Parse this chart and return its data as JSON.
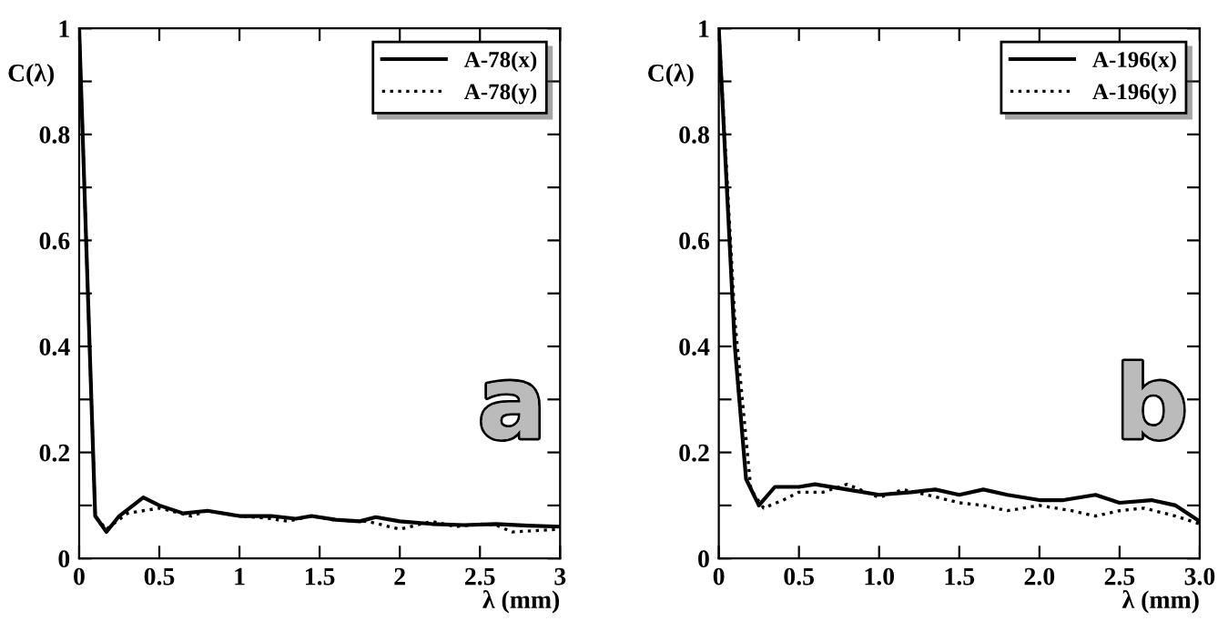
{
  "chart_data": [
    {
      "type": "line",
      "xlabel": "λ (mm)",
      "ylabel": "C(λ)",
      "annotations": [
        "a"
      ],
      "xlim": [
        0,
        3
      ],
      "ylim": [
        0,
        1
      ],
      "xticks": [
        0,
        0.5,
        1,
        1.5,
        2,
        2.5,
        3
      ],
      "yticks": [
        0,
        {
          "value": 0.1,
          "label": null
        },
        0.2,
        {
          "value": 0.3,
          "label": null
        },
        0.4,
        {
          "value": 0.5,
          "label": null
        },
        0.6,
        {
          "value": 0.7,
          "label": null
        },
        0.8,
        {
          "value": 0.9,
          "label": null
        },
        1
      ],
      "legend": "top right",
      "grid": false,
      "marker": "none",
      "series": [
        {
          "name": "A-78(x)",
          "color": "#000000",
          "line_style": "solid",
          "x": [
            0,
            0.1,
            0.17,
            0.25,
            0.4,
            0.5,
            0.65,
            0.8,
            1.0,
            1.2,
            1.35,
            1.45,
            1.6,
            1.75,
            1.85,
            2.0,
            2.2,
            2.4,
            2.6,
            2.8,
            3.0
          ],
          "values": [
            1,
            0.08,
            0.05,
            0.08,
            0.115,
            0.1,
            0.085,
            0.09,
            0.08,
            0.08,
            0.075,
            0.08,
            0.073,
            0.07,
            0.078,
            0.07,
            0.065,
            0.063,
            0.065,
            0.062,
            0.06
          ]
        },
        {
          "name": "A-78(y)",
          "color": "#000000",
          "line_style": "dotted",
          "x": [
            0,
            0.1,
            0.17,
            0.3,
            0.5,
            0.7,
            0.8,
            1.0,
            1.2,
            1.3,
            1.45,
            1.6,
            1.8,
            2.0,
            2.2,
            2.35,
            2.5,
            2.6,
            2.7,
            3.0
          ],
          "values": [
            1,
            0.08,
            0.055,
            0.085,
            0.095,
            0.08,
            0.09,
            0.08,
            0.075,
            0.07,
            0.08,
            0.072,
            0.07,
            0.055,
            0.07,
            0.06,
            0.065,
            0.063,
            0.05,
            0.055
          ]
        }
      ]
    },
    {
      "type": "line",
      "xlabel": "λ (mm)",
      "ylabel": "C(λ)",
      "annotations": [
        "b"
      ],
      "xlim": [
        0,
        3
      ],
      "ylim": [
        0,
        1
      ],
      "xticks": [
        0,
        0.5,
        {
          "value": 1,
          "label": "1.0"
        },
        1.5,
        {
          "value": 2,
          "label": "2.0"
        },
        2.5,
        {
          "value": 3,
          "label": "3.0"
        }
      ],
      "yticks": [
        0,
        {
          "value": 0.1,
          "label": null
        },
        0.2,
        {
          "value": 0.3,
          "label": null
        },
        0.4,
        {
          "value": 0.5,
          "label": null
        },
        0.6,
        {
          "value": 0.7,
          "label": null
        },
        0.8,
        {
          "value": 0.9,
          "label": null
        },
        1
      ],
      "legend": "top right",
      "grid": false,
      "marker": "none",
      "series": [
        {
          "name": "A-196(x)",
          "color": "#000000",
          "line_style": "solid",
          "x": [
            0,
            0.1,
            0.17,
            0.25,
            0.35,
            0.5,
            0.6,
            0.8,
            1.0,
            1.2,
            1.35,
            1.5,
            1.65,
            1.8,
            2.0,
            2.15,
            2.35,
            2.5,
            2.7,
            2.85,
            3.0
          ],
          "values": [
            1,
            0.4,
            0.15,
            0.1,
            0.135,
            0.135,
            0.14,
            0.13,
            0.12,
            0.125,
            0.13,
            0.12,
            0.13,
            0.12,
            0.11,
            0.11,
            0.12,
            0.105,
            0.11,
            0.1,
            0.07
          ]
        },
        {
          "name": "A-196(y)",
          "color": "#000000",
          "line_style": "dotted",
          "x": [
            0,
            0.1,
            0.2,
            0.28,
            0.4,
            0.5,
            0.65,
            0.8,
            1.0,
            1.15,
            1.3,
            1.5,
            1.65,
            1.8,
            2.0,
            2.2,
            2.35,
            2.5,
            2.65,
            2.85,
            3.0
          ],
          "values": [
            1,
            0.45,
            0.13,
            0.095,
            0.11,
            0.125,
            0.125,
            0.14,
            0.115,
            0.13,
            0.12,
            0.105,
            0.1,
            0.09,
            0.1,
            0.09,
            0.08,
            0.09,
            0.095,
            0.08,
            0.065
          ]
        }
      ]
    }
  ]
}
